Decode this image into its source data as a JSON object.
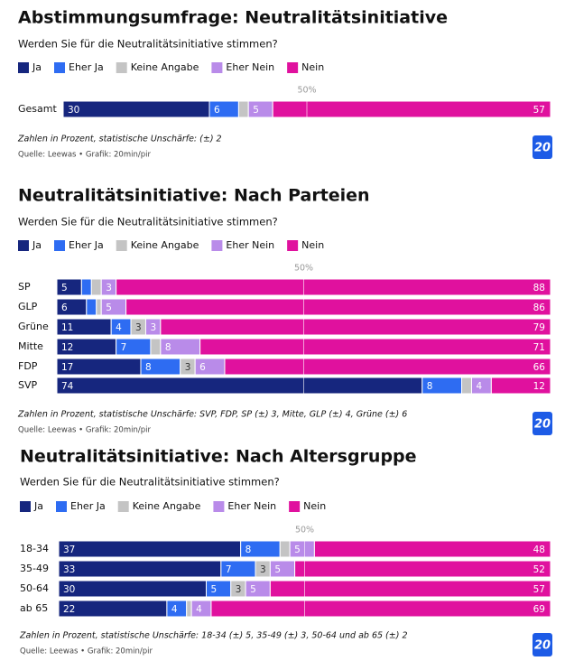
{
  "chart_data": [
    {
      "type": "bar",
      "stacked": true,
      "orientation": "horizontal",
      "title": "Abstimmungsumfrage: Neutralitätsinitiative",
      "subtitle": "Werden Sie für die Neutralitätsinitiative stimmen?",
      "categories": [
        "Gesamt"
      ],
      "series": [
        {
          "name": "Ja",
          "color": "#16267e",
          "values": [
            30
          ]
        },
        {
          "name": "Eher Ja",
          "color": "#2e6cf2",
          "values": [
            6
          ]
        },
        {
          "name": "Keine Angabe",
          "color": "#c4c4c4",
          "values": [
            2
          ]
        },
        {
          "name": "Eher Nein",
          "color": "#b98be9",
          "values": [
            5
          ]
        },
        {
          "name": "Nein",
          "color": "#e0119e",
          "values": [
            57
          ]
        }
      ],
      "xlim": [
        0,
        100
      ],
      "midline": {
        "value": 50,
        "label": "50%"
      },
      "note": "Zahlen in Prozent, statistische Unschärfe: (±) 2",
      "source": "Quelle: Leewas • Grafik: 20min/pir",
      "logo": "20"
    },
    {
      "type": "bar",
      "stacked": true,
      "orientation": "horizontal",
      "title": "Neutralitätsinitiative: Nach Parteien",
      "subtitle": "Werden Sie für die Neutralitätsinitiative stimmen?",
      "categories": [
        "SP",
        "GLP",
        "Grüne",
        "Mitte",
        "FDP",
        "SVP"
      ],
      "series": [
        {
          "name": "Ja",
          "color": "#16267e",
          "values": [
            5,
            6,
            11,
            12,
            17,
            74
          ]
        },
        {
          "name": "Eher Ja",
          "color": "#2e6cf2",
          "values": [
            2,
            2,
            4,
            7,
            8,
            8
          ]
        },
        {
          "name": "Keine Angabe",
          "color": "#c4c4c4",
          "values": [
            2,
            1,
            3,
            2,
            3,
            2
          ]
        },
        {
          "name": "Eher Nein",
          "color": "#b98be9",
          "values": [
            3,
            5,
            3,
            8,
            6,
            4
          ]
        },
        {
          "name": "Nein",
          "color": "#e0119e",
          "values": [
            88,
            86,
            79,
            71,
            66,
            12
          ]
        }
      ],
      "xlim": [
        0,
        100
      ],
      "midline": {
        "value": 50,
        "label": "50%"
      },
      "note": "Zahlen in Prozent, statistische Unschärfe: SVP, FDP, SP (±) 3,  Mitte, GLP (±) 4, Grüne (±) 6",
      "source": "Quelle: Leewas • Grafik: 20min/pir",
      "logo": "20"
    },
    {
      "type": "bar",
      "stacked": true,
      "orientation": "horizontal",
      "title": "Neutralitätsinitiative: Nach Altersgruppe",
      "subtitle": "Werden Sie für die Neutralitätsinitiative stimmen?",
      "categories": [
        "18-34",
        "35-49",
        "50-64",
        "ab 65"
      ],
      "series": [
        {
          "name": "Ja",
          "color": "#16267e",
          "values": [
            37,
            33,
            30,
            22
          ]
        },
        {
          "name": "Eher Ja",
          "color": "#2e6cf2",
          "values": [
            8,
            7,
            5,
            4
          ]
        },
        {
          "name": "Keine Angabe",
          "color": "#c4c4c4",
          "values": [
            2,
            3,
            3,
            1
          ]
        },
        {
          "name": "Eher Nein",
          "color": "#b98be9",
          "values": [
            5,
            5,
            5,
            4
          ]
        },
        {
          "name": "Nein",
          "color": "#e0119e",
          "values": [
            48,
            52,
            57,
            69
          ]
        }
      ],
      "xlim": [
        0,
        100
      ],
      "midline": {
        "value": 50,
        "label": "50%"
      },
      "note": "Zahlen in Prozent, statistische Unschärfe: 18-34 (±) 5, 35-49 (±) 3, 50-64 und ab 65 (±) 2",
      "source": "Quelle: Leewas • Grafik: 20min/pir",
      "logo": "20"
    }
  ]
}
